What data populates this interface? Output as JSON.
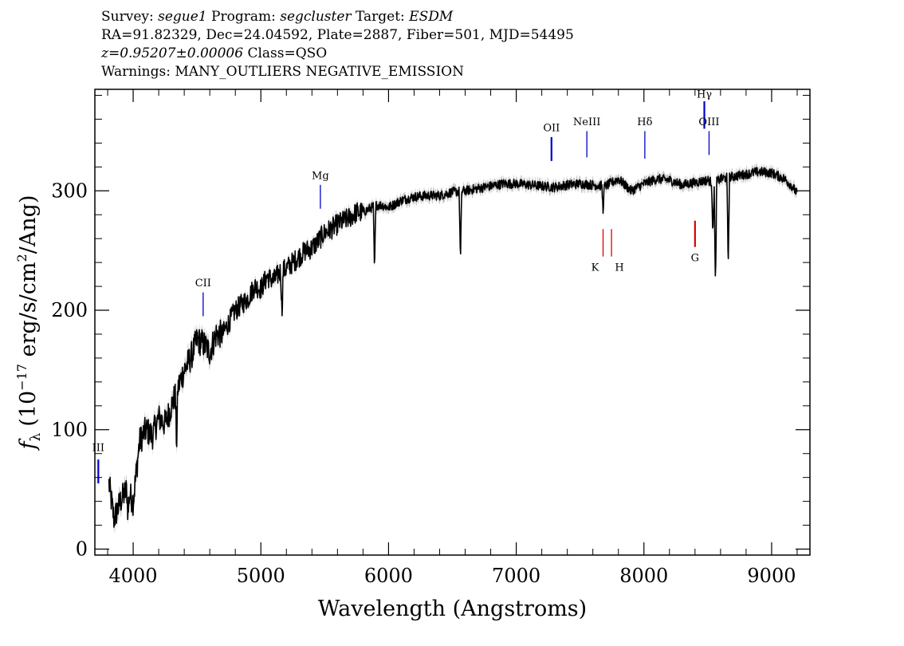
{
  "header": {
    "line1": {
      "survey_label": "Survey:",
      "survey": "segue1",
      "program_label": "Program:",
      "program": "segcluster",
      "target_label": "Target:",
      "target": "ESDM"
    },
    "line2": "RA=91.82329, Dec=24.04592, Plate=2887, Fiber=501, MJD=54495",
    "line3": {
      "redshift": "z=0.95207±0.00006",
      "class": "Class=QSO"
    },
    "line4": "Warnings: MANY_OUTLIERS NEGATIVE_EMISSION"
  },
  "chart_data": {
    "type": "line",
    "title": "",
    "xlabel": "Wavelength (Angstroms)",
    "ylabel_prefix": "f",
    "ylabel_subscript": "λ",
    "ylabel_units_a": "(10",
    "ylabel_exp1": "−17",
    "ylabel_units_b": " erg/s/cm",
    "ylabel_exp2": "2",
    "ylabel_units_c": "/Ang)",
    "xlim": [
      3700,
      9300
    ],
    "ylim": [
      -5,
      385
    ],
    "x_ticks": [
      4000,
      5000,
      6000,
      7000,
      8000,
      9000
    ],
    "y_ticks": [
      0,
      100,
      200,
      300
    ],
    "x_tick_labels": [
      "4000",
      "5000",
      "6000",
      "7000",
      "8000",
      "9000"
    ],
    "y_tick_labels": [
      "0",
      "100",
      "200",
      "300"
    ],
    "grid": false,
    "colors": {
      "flux": "#000000",
      "error_band": "#c0c0c0",
      "emission_lines": "#0000cc",
      "absorption_lines": "#dd0000"
    },
    "series": [
      {
        "x": [
          3810,
          3850,
          3900,
          3950,
          4000,
          4050,
          4100,
          4150,
          4200,
          4250,
          4300,
          4350,
          4400,
          4450,
          4500,
          4550,
          4600,
          4650,
          4700,
          4750,
          4800,
          4850,
          4900,
          4950,
          5000,
          5050,
          5100,
          5150,
          5200,
          5250,
          5300,
          5350,
          5400,
          5450,
          5500,
          5550,
          5600,
          5650,
          5700,
          5750,
          5800,
          5850,
          5900,
          5950,
          6000,
          6100,
          6200,
          6300,
          6400,
          6500,
          6600,
          6700,
          6800,
          6900,
          7000,
          7100,
          7200,
          7300,
          7400,
          7500,
          7600,
          7700,
          7800,
          7900,
          8000,
          8100,
          8200,
          8300,
          8400,
          8500,
          8550,
          8600,
          8700,
          8800,
          8900,
          9000,
          9100,
          9150,
          9200
        ],
        "y": [
          55,
          25,
          40,
          50,
          40,
          90,
          100,
          95,
          110,
          105,
          120,
          135,
          150,
          160,
          175,
          172,
          165,
          180,
          180,
          190,
          200,
          205,
          210,
          220,
          218,
          228,
          225,
          232,
          235,
          240,
          245,
          250,
          252,
          258,
          265,
          268,
          272,
          275,
          278,
          282,
          282,
          285,
          288,
          288,
          286,
          292,
          295,
          296,
          296,
          299,
          300,
          302,
          304,
          306,
          306,
          305,
          304,
          303,
          305,
          306,
          305,
          304,
          310,
          300,
          306,
          310,
          309,
          305,
          307,
          309,
          306,
          310,
          312,
          314,
          316,
          315,
          310,
          305,
          298
        ]
      }
    ],
    "absorption_features": [
      {
        "x": 3960,
        "depth": 20
      },
      {
        "x": 4340,
        "depth": 45
      },
      {
        "x": 5165,
        "depth": 35
      },
      {
        "x": 5890,
        "depth": 55
      },
      {
        "x": 6563,
        "depth": 60
      },
      {
        "x": 7680,
        "depth": 20
      },
      {
        "x": 8540,
        "depth": 45
      },
      {
        "x": 8560,
        "depth": 90
      },
      {
        "x": 8660,
        "depth": 75
      }
    ],
    "lines": [
      {
        "label": "III",
        "x": 3727,
        "y0": 55,
        "y1": 75,
        "label_y": 82,
        "color": "emission",
        "thick": true
      },
      {
        "label": "CII",
        "x": 4548,
        "y0": 195,
        "y1": 215,
        "label_y": 220,
        "color": "emission",
        "thick": false
      },
      {
        "label": "Mg",
        "x": 5466,
        "y0": 285,
        "y1": 305,
        "label_y": 310,
        "color": "emission",
        "thick": false
      },
      {
        "label": "OII",
        "x": 7276,
        "y0": 325,
        "y1": 345,
        "label_y": 350,
        "color": "emission",
        "thick": true
      },
      {
        "label": "NeIII",
        "x": 7553,
        "y0": 328,
        "y1": 350,
        "label_y": 355,
        "color": "emission",
        "thick": false
      },
      {
        "label": "Hδ",
        "x": 8007,
        "y0": 327,
        "y1": 350,
        "label_y": 355,
        "color": "emission",
        "thick": false
      },
      {
        "label": "Hγ",
        "x": 8473,
        "y0": 352,
        "y1": 375,
        "label_y": 378,
        "color": "emission",
        "thick": true
      },
      {
        "label": "OIII",
        "x": 8510,
        "y0": 330,
        "y1": 350,
        "label_y": 355,
        "color": "emission",
        "thick": false
      },
      {
        "label": "K",
        "x": 7680,
        "y0": 245,
        "y1": 268,
        "label_y": 233,
        "color": "absorption",
        "thick": false,
        "label_dx": -10
      },
      {
        "label": "H",
        "x": 7746,
        "y0": 245,
        "y1": 268,
        "label_y": 233,
        "color": "absorption",
        "thick": false,
        "label_dx": 10
      },
      {
        "label": "G",
        "x": 8400,
        "y0": 253,
        "y1": 275,
        "label_y": 241,
        "color": "absorption",
        "thick": true
      }
    ]
  }
}
